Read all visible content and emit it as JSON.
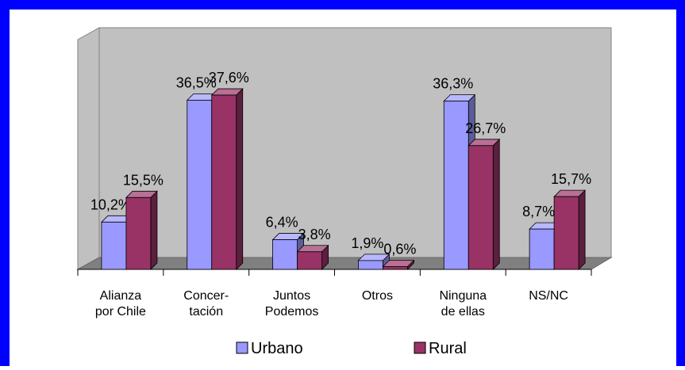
{
  "chart_data": {
    "type": "bar",
    "categories": [
      "Alianza\npor Chile",
      "Concer-\ntación",
      "Juntos\nPodemos",
      "Otros",
      "Ninguna\nde ellas",
      "NS/NC"
    ],
    "series": [
      {
        "name": "Urbano",
        "color": "#9999ff",
        "values": [
          10.2,
          36.5,
          6.4,
          1.9,
          36.3,
          8.7
        ],
        "value_labels": [
          "10,2%",
          "36,5%",
          "6,4%",
          "1,9%",
          "36,3%",
          "8,7%"
        ]
      },
      {
        "name": "Rural",
        "color": "#993366",
        "values": [
          15.5,
          37.6,
          3.8,
          0.6,
          26.7,
          15.7
        ],
        "value_labels": [
          "15,5%",
          "37,6%",
          "3,8%",
          "0,6%",
          "26,7%",
          "15,7%"
        ]
      }
    ],
    "legend": "bottom"
  }
}
